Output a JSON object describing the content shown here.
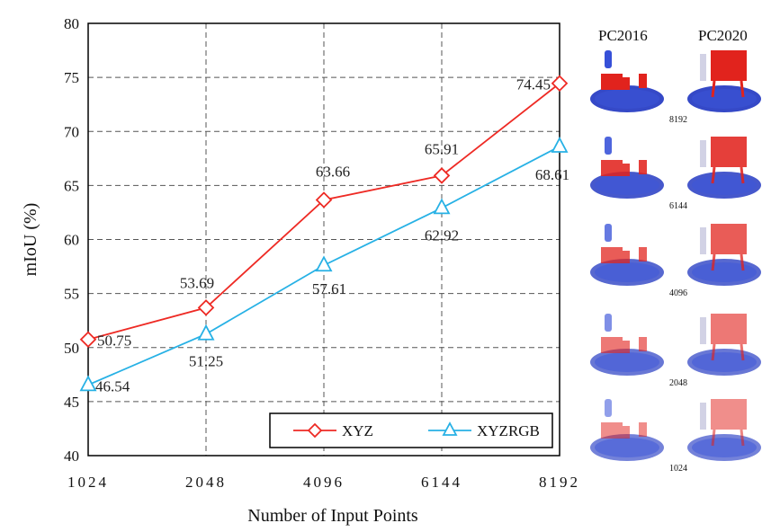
{
  "chart_data": {
    "type": "line",
    "x": [
      1024,
      2048,
      4096,
      6144,
      8192
    ],
    "categories": [
      "1024",
      "2048",
      "4096",
      "6144",
      "8192"
    ],
    "series": [
      {
        "name": "XYZ",
        "values": [
          50.75,
          53.69,
          63.66,
          65.91,
          74.45
        ],
        "color": "#ee2a24",
        "marker": "diamond",
        "labels": [
          "50.75",
          "53.69",
          "63.66",
          "65.91",
          "74.45"
        ]
      },
      {
        "name": "XYZRGB",
        "values": [
          46.54,
          51.25,
          57.61,
          62.92,
          68.61
        ],
        "color": "#27b1e5",
        "marker": "triangle",
        "labels": [
          "46.54",
          "51.25",
          "57.61",
          "62.92",
          "68.61"
        ]
      }
    ],
    "xlabel": "Number of Input Points",
    "ylabel": "mIoU (%)",
    "ylim": [
      40,
      80
    ],
    "yticks": [
      "40",
      "45",
      "50",
      "55",
      "60",
      "65",
      "70",
      "75",
      "80"
    ],
    "grid": true,
    "legend": "bottom-right"
  },
  "thumbnails": {
    "column_headers": [
      "PC2016",
      "PC2020"
    ],
    "row_labels": [
      "8192",
      "6144",
      "4096",
      "2048",
      "1024"
    ]
  }
}
